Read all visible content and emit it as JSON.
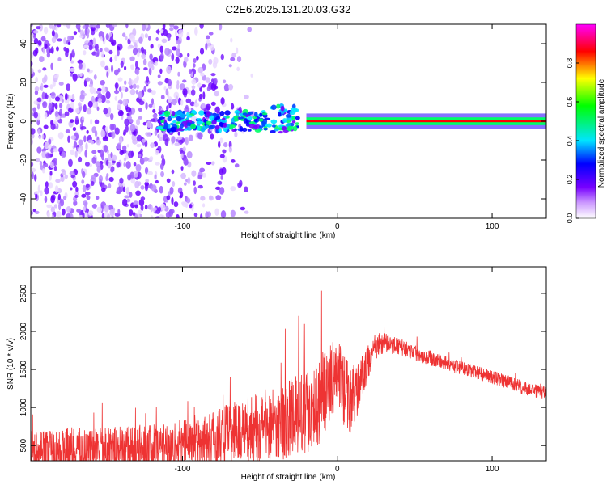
{
  "title": "C2E6.2025.131.20.03.G32",
  "chart_data": [
    {
      "type": "heatmap",
      "name": "spectrogram",
      "xlabel": "Height of straight line (km)",
      "ylabel": "Frequency (Hz)",
      "xlim": [
        -198,
        135
      ],
      "ylim": [
        -50,
        50
      ],
      "xticks": [
        -100,
        0,
        100
      ],
      "xtick_labels": [
        "-100",
        "0",
        "100"
      ],
      "yticks": [
        -40,
        -20,
        0,
        20,
        40
      ],
      "ytick_labels": [
        "-40",
        "-20",
        "0",
        "20",
        "40"
      ],
      "grid": false,
      "colorbar": {
        "label": "Normalized spectral amplitude",
        "range": [
          0,
          1
        ],
        "ticks": [
          0.0,
          0.2,
          0.4,
          0.6,
          0.8
        ],
        "tick_labels": [
          "0.0",
          "0.2",
          "0.4",
          "0.6",
          "0.8"
        ],
        "colors": [
          "#ffffff",
          "#7700ff",
          "#0000ff",
          "#00e5ff",
          "#00ff00",
          "#ffff00",
          "#ff0000",
          "#ff00ff"
        ]
      },
      "features": {
        "noise_region_x": [
          -198,
          -60
        ],
        "carrier_start_x": -20,
        "carrier_frequency_hz": 0,
        "band_half_width_hz": 4
      }
    },
    {
      "type": "line",
      "name": "snr",
      "xlabel": "Height of straight line (km)",
      "ylabel": "SNR (10 * v/v)",
      "xlim": [
        -198,
        135
      ],
      "ylim": [
        300,
        2850
      ],
      "xticks": [
        -100,
        0,
        100
      ],
      "xtick_labels": [
        "-100",
        "0",
        "100"
      ],
      "yticks": [
        500,
        1000,
        1500,
        2000,
        2500
      ],
      "ytick_labels": [
        "500",
        "1000",
        "1500",
        "2000",
        "2500"
      ],
      "grid": false,
      "color": "#ee3333",
      "x": [
        -198,
        -180,
        -160,
        -140,
        -120,
        -100,
        -80,
        -60,
        -40,
        -30,
        -20,
        -12,
        -5,
        0,
        5,
        10,
        15,
        20,
        25,
        30,
        40,
        60,
        80,
        100,
        120,
        135
      ],
      "y": [
        420,
        430,
        440,
        450,
        470,
        520,
        600,
        700,
        780,
        850,
        950,
        1100,
        1300,
        1500,
        1200,
        1100,
        1350,
        1600,
        1780,
        1850,
        1800,
        1650,
        1520,
        1400,
        1260,
        1180
      ],
      "spread": [
        280,
        290,
        300,
        300,
        320,
        340,
        380,
        420,
        480,
        520,
        560,
        600,
        500,
        450,
        500,
        450,
        300,
        220,
        160,
        130,
        110,
        100,
        90,
        90,
        90,
        90
      ]
    }
  ]
}
